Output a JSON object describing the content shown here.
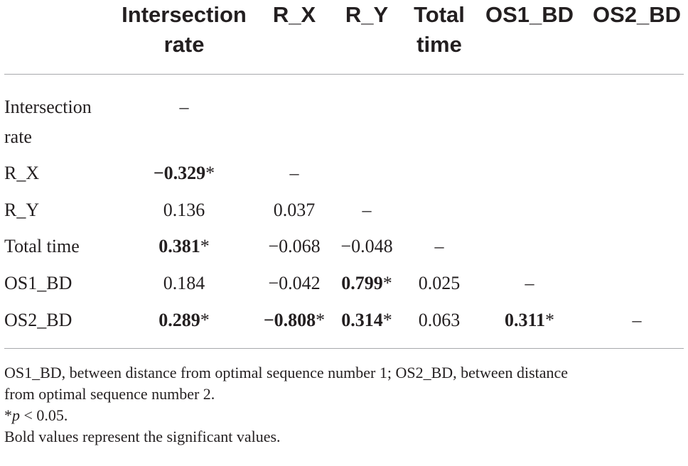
{
  "columns": [
    {
      "label_lines": [
        "Intersection",
        "rate"
      ]
    },
    {
      "label_lines": [
        "R_X"
      ]
    },
    {
      "label_lines": [
        "R_Y"
      ]
    },
    {
      "label_lines": [
        "Total",
        "time"
      ]
    },
    {
      "label_lines": [
        "OS1_BD"
      ]
    },
    {
      "label_lines": [
        "OS2_BD"
      ]
    }
  ],
  "rows": [
    {
      "label_lines": [
        "Intersection",
        "rate"
      ],
      "cells": [
        {
          "text": "–"
        }
      ]
    },
    {
      "label_lines": [
        "R_X"
      ],
      "cells": [
        {
          "text": "−0.329",
          "bold": true,
          "star": true
        },
        {
          "text": "–"
        }
      ]
    },
    {
      "label_lines": [
        "R_Y"
      ],
      "cells": [
        {
          "text": "0.136"
        },
        {
          "text": "0.037"
        },
        {
          "text": "–"
        }
      ]
    },
    {
      "label_lines": [
        "Total time"
      ],
      "cells": [
        {
          "text": "0.381",
          "bold": true,
          "star": true
        },
        {
          "text": "−0.068"
        },
        {
          "text": "−0.048"
        },
        {
          "text": "–"
        }
      ]
    },
    {
      "label_lines": [
        "OS1_BD"
      ],
      "cells": [
        {
          "text": "0.184"
        },
        {
          "text": "−0.042"
        },
        {
          "text": "0.799",
          "bold": true,
          "star": true
        },
        {
          "text": "0.025"
        },
        {
          "text": "–"
        }
      ]
    },
    {
      "label_lines": [
        "OS2_BD"
      ],
      "cells": [
        {
          "text": "0.289",
          "bold": true,
          "star": true
        },
        {
          "text": "−0.808",
          "bold": true,
          "star": true
        },
        {
          "text": "0.314",
          "bold": true,
          "star": true
        },
        {
          "text": "0.063"
        },
        {
          "text": "0.311",
          "bold": true,
          "star": true
        },
        {
          "text": "–"
        }
      ]
    }
  ],
  "star_symbol": "*",
  "footnotes": {
    "line1": "OS1_BD, between distance from optimal sequence number 1; OS2_BD, between distance",
    "line2": "from optimal sequence number 2.",
    "sig_star": "*",
    "sig_p": "p",
    "sig_rest": " < 0.05.",
    "bold_note": "Bold values represent the significant values."
  }
}
